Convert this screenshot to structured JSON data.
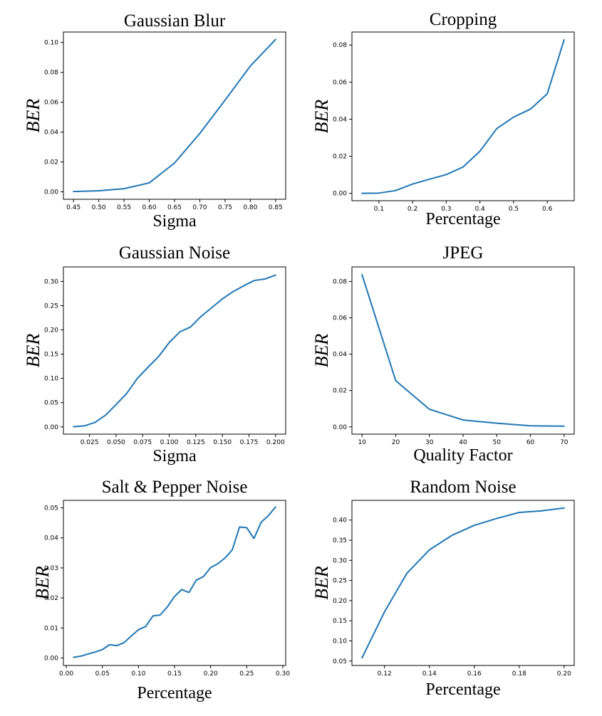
{
  "chart_data": [
    {
      "type": "line",
      "title": "Gaussian Blur",
      "xlabel": "Sigma",
      "ylabel": "BER",
      "xlim": [
        0.43,
        0.87
      ],
      "ylim": [
        -0.005,
        0.107
      ],
      "xticks": [
        0.45,
        0.5,
        0.55,
        0.6,
        0.65,
        0.7,
        0.75,
        0.8,
        0.85
      ],
      "xticklabels": [
        "0.45",
        "0.50",
        "0.55",
        "0.60",
        "0.65",
        "0.70",
        "0.75",
        "0.80",
        "0.85"
      ],
      "yticks": [
        0.0,
        0.02,
        0.04,
        0.06,
        0.08,
        0.1
      ],
      "yticklabels": [
        "0.00",
        "0.02",
        "0.04",
        "0.06",
        "0.08",
        "0.10"
      ],
      "series": [
        {
          "x": [
            0.45,
            0.5,
            0.55,
            0.6,
            0.65,
            0.7,
            0.75,
            0.8,
            0.85
          ],
          "y": [
            0.0002,
            0.0007,
            0.0021,
            0.006,
            0.0193,
            0.0391,
            0.0614,
            0.0842,
            0.102
          ]
        }
      ]
    },
    {
      "type": "line",
      "title": "Cropping",
      "xlabel": "Percentage",
      "ylabel": "BER",
      "xlim": [
        0.02,
        0.68
      ],
      "ylim": [
        -0.004,
        0.087
      ],
      "xticks": [
        0.1,
        0.2,
        0.3,
        0.4,
        0.5,
        0.6
      ],
      "xticklabels": [
        "0.1",
        "0.2",
        "0.3",
        "0.4",
        "0.5",
        "0.6"
      ],
      "yticks": [
        0.0,
        0.02,
        0.04,
        0.06,
        0.08
      ],
      "yticklabels": [
        "0.00",
        "0.02",
        "0.04",
        "0.06",
        "0.08"
      ],
      "series": [
        {
          "x": [
            0.05,
            0.1,
            0.15,
            0.2,
            0.25,
            0.3,
            0.35,
            0.4,
            0.45,
            0.5,
            0.55,
            0.6,
            0.65
          ],
          "y": [
            0.0,
            0.0001,
            0.0015,
            0.005,
            0.0076,
            0.0101,
            0.0142,
            0.0227,
            0.0349,
            0.0411,
            0.0454,
            0.0537,
            0.0828
          ]
        }
      ]
    },
    {
      "type": "line",
      "title": "Gaussian Noise",
      "xlabel": "Sigma",
      "ylabel": "BER",
      "xlim": [
        0.0005,
        0.2095
      ],
      "ylim": [
        -0.015,
        0.33
      ],
      "xticks": [
        0.025,
        0.05,
        0.075,
        0.1,
        0.125,
        0.15,
        0.175,
        0.2
      ],
      "xticklabels": [
        "0.025",
        "0.050",
        "0.075",
        "0.100",
        "0.125",
        "0.150",
        "0.175",
        "0.200"
      ],
      "yticks": [
        0.0,
        0.05,
        0.1,
        0.15,
        0.2,
        0.25,
        0.3
      ],
      "yticklabels": [
        "0.00",
        "0.05",
        "0.10",
        "0.15",
        "0.20",
        "0.25",
        "0.30"
      ],
      "series": [
        {
          "x": [
            0.01,
            0.02,
            0.03,
            0.04,
            0.05,
            0.06,
            0.07,
            0.08,
            0.09,
            0.1,
            0.11,
            0.12,
            0.13,
            0.14,
            0.15,
            0.16,
            0.17,
            0.18,
            0.19,
            0.2
          ],
          "y": [
            0.0005,
            0.002,
            0.009,
            0.024,
            0.046,
            0.069,
            0.1,
            0.123,
            0.145,
            0.174,
            0.196,
            0.206,
            0.228,
            0.246,
            0.264,
            0.279,
            0.291,
            0.302,
            0.305,
            0.313
          ]
        }
      ]
    },
    {
      "type": "line",
      "title": "JPEG",
      "xlabel": "Quality Factor",
      "ylabel": "BER",
      "xlim": [
        7,
        73
      ],
      "ylim": [
        -0.004,
        0.088
      ],
      "xticks": [
        10,
        20,
        30,
        40,
        50,
        60,
        70
      ],
      "xticklabels": [
        "10",
        "20",
        "30",
        "40",
        "50",
        "60",
        "70"
      ],
      "yticks": [
        0.0,
        0.02,
        0.04,
        0.06,
        0.08
      ],
      "yticklabels": [
        "0.00",
        "0.02",
        "0.04",
        "0.06",
        "0.08"
      ],
      "series": [
        {
          "x": [
            10,
            20,
            30,
            40,
            50,
            60,
            70
          ],
          "y": [
            0.0837,
            0.0254,
            0.0097,
            0.0038,
            0.002,
            0.0006,
            0.0004
          ]
        }
      ]
    },
    {
      "type": "line",
      "title": "Salt & Pepper Noise",
      "xlabel": "Percentage",
      "ylabel": "BER",
      "xlim": [
        -0.004,
        0.304
      ],
      "ylim": [
        -0.0025,
        0.0525
      ],
      "xticks": [
        0.0,
        0.05,
        0.1,
        0.15,
        0.2,
        0.25,
        0.3
      ],
      "xticklabels": [
        "0.00",
        "0.05",
        "0.10",
        "0.15",
        "0.20",
        "0.25",
        "0.30"
      ],
      "yticks": [
        0.0,
        0.01,
        0.02,
        0.03,
        0.04,
        0.05
      ],
      "yticklabels": [
        "0.00",
        "0.01",
        "0.02",
        "0.03",
        "0.04",
        "0.05"
      ],
      "series": [
        {
          "x": [
            0.01,
            0.02,
            0.03,
            0.04,
            0.05,
            0.06,
            0.07,
            0.08,
            0.09,
            0.1,
            0.11,
            0.12,
            0.13,
            0.14,
            0.15,
            0.16,
            0.17,
            0.18,
            0.19,
            0.2,
            0.21,
            0.22,
            0.23,
            0.24,
            0.25,
            0.26,
            0.27,
            0.28,
            0.29
          ],
          "y": [
            0.0002,
            0.0006,
            0.0013,
            0.002,
            0.0028,
            0.0044,
            0.0041,
            0.0051,
            0.0073,
            0.0094,
            0.0105,
            0.014,
            0.0143,
            0.017,
            0.0205,
            0.0228,
            0.0218,
            0.0259,
            0.0271,
            0.0301,
            0.0314,
            0.0333,
            0.036,
            0.0436,
            0.0434,
            0.0398,
            0.0452,
            0.0474,
            0.0503
          ]
        }
      ]
    },
    {
      "type": "line",
      "title": "Random Noise",
      "xlabel": "Percentage",
      "ylabel": "BER",
      "xlim": [
        0.1055,
        0.2045
      ],
      "ylim": [
        0.039,
        0.449
      ],
      "xticks": [
        0.12,
        0.14,
        0.16,
        0.18,
        0.2
      ],
      "xticklabels": [
        "0.12",
        "0.14",
        "0.16",
        "0.18",
        "0.20"
      ],
      "yticks": [
        0.05,
        0.1,
        0.15,
        0.2,
        0.25,
        0.3,
        0.35,
        0.4
      ],
      "yticklabels": [
        "0.05",
        "0.10",
        "0.15",
        "0.20",
        "0.25",
        "0.30",
        "0.35",
        "0.40"
      ],
      "series": [
        {
          "x": [
            0.11,
            0.12,
            0.13,
            0.14,
            0.15,
            0.16,
            0.17,
            0.18,
            0.19,
            0.2
          ],
          "y": [
            0.058,
            0.172,
            0.268,
            0.326,
            0.362,
            0.387,
            0.404,
            0.419,
            0.423,
            0.43
          ]
        }
      ]
    }
  ]
}
